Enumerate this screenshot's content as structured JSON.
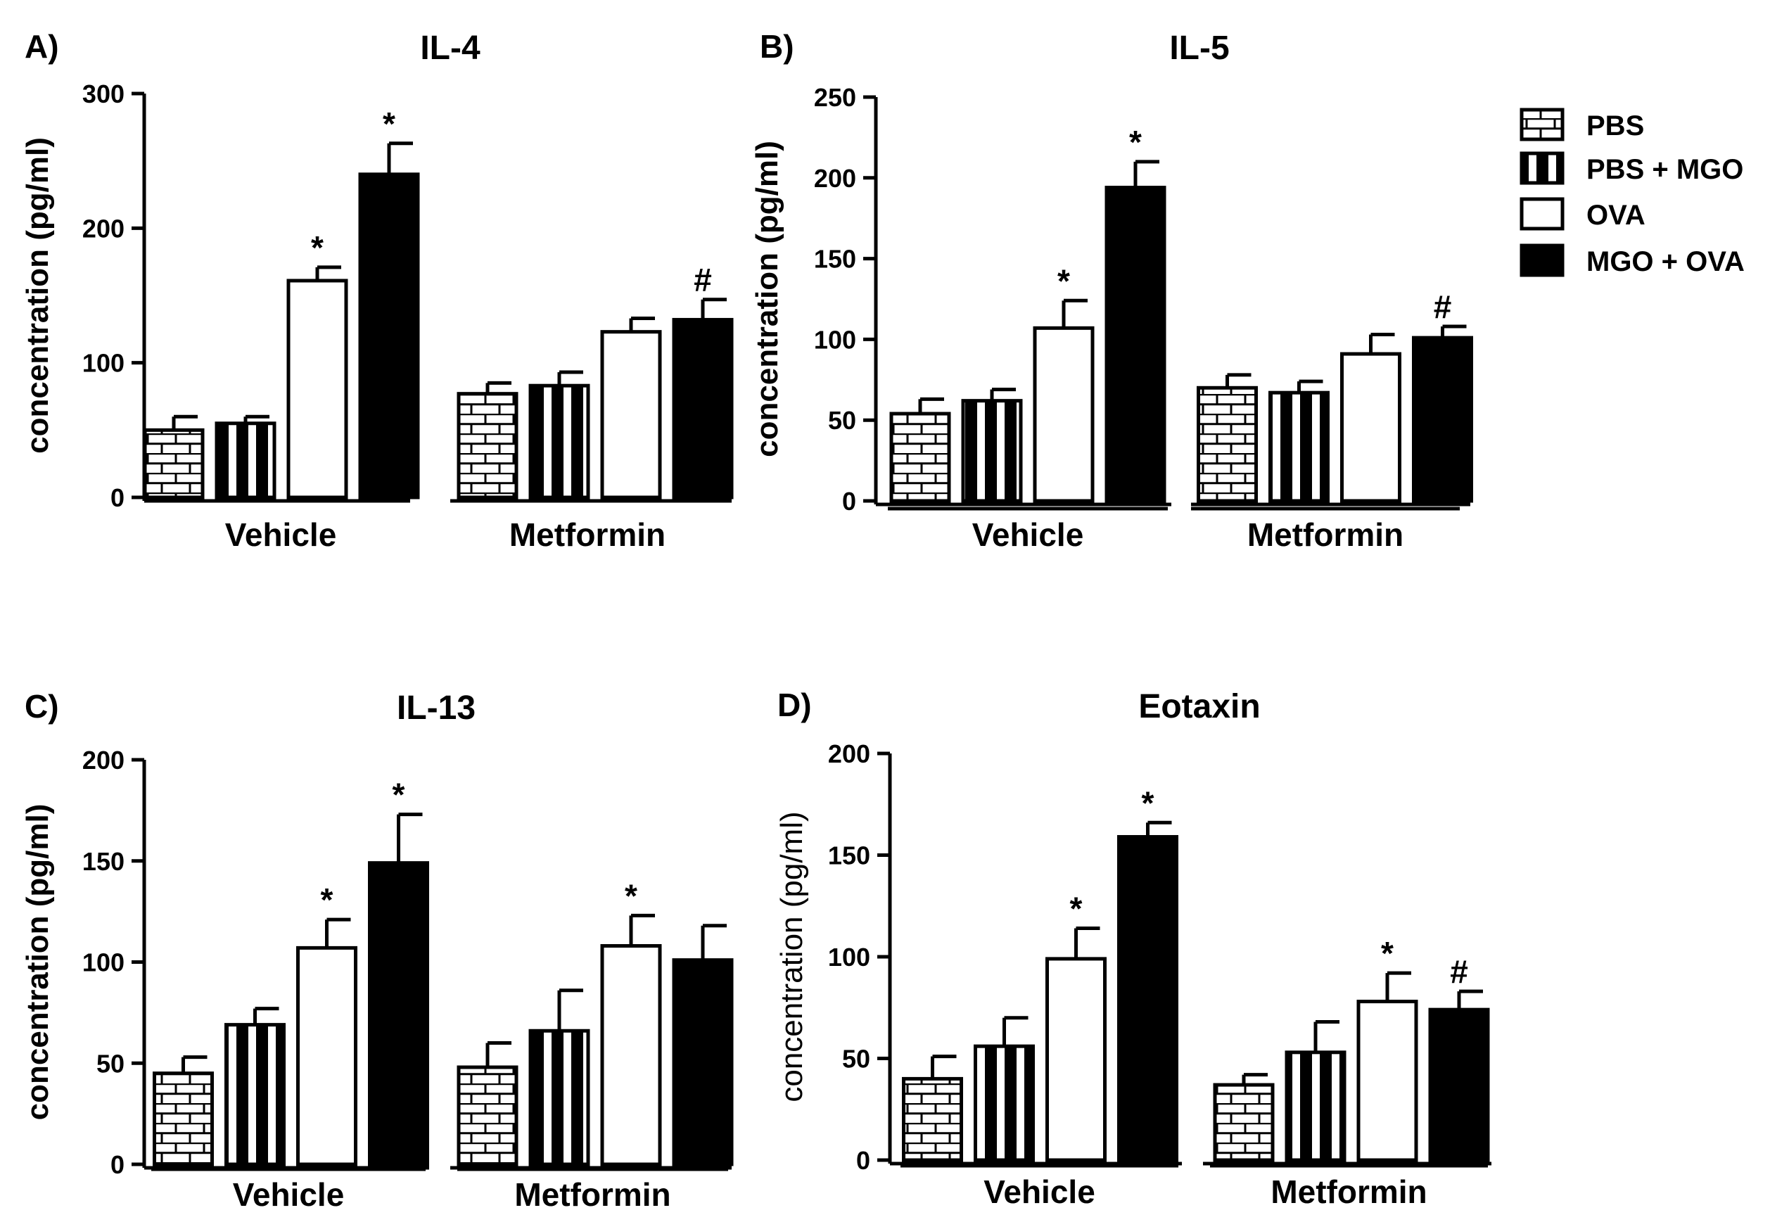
{
  "legend": {
    "entries": [
      {
        "key": "pbs",
        "label": "PBS"
      },
      {
        "key": "pbs_mgo",
        "label": "PBS + MGO"
      },
      {
        "key": "ova",
        "label": "OVA"
      },
      {
        "key": "mgo_ova",
        "label": "MGO + OVA"
      }
    ]
  },
  "chart_data": [
    {
      "type": "bar",
      "panel": "A)",
      "title": "IL-4",
      "ylabel": "concentration (pg/ml)",
      "ylim": [
        0,
        300
      ],
      "yticks": [
        0,
        100,
        200,
        300
      ],
      "groups": [
        "Vehicle",
        "Metformin"
      ],
      "series": [
        {
          "name": "PBS",
          "values": [
            50,
            77
          ],
          "errors": [
            10,
            8
          ],
          "annotations": [
            "",
            ""
          ]
        },
        {
          "name": "PBS + MGO",
          "values": [
            55,
            83
          ],
          "errors": [
            5,
            10
          ],
          "annotations": [
            "",
            ""
          ]
        },
        {
          "name": "OVA",
          "values": [
            161,
            123
          ],
          "errors": [
            10,
            10
          ],
          "annotations": [
            "*",
            ""
          ]
        },
        {
          "name": "MGO + OVA",
          "values": [
            240,
            132
          ],
          "errors": [
            23,
            15
          ],
          "annotations": [
            "*",
            "#"
          ]
        }
      ]
    },
    {
      "type": "bar",
      "panel": "B)",
      "title": "IL-5",
      "ylabel": "concentration (pg/ml)",
      "ylim": [
        0,
        250
      ],
      "yticks": [
        0,
        50,
        100,
        150,
        200,
        250
      ],
      "groups": [
        "Vehicle",
        "Metformin"
      ],
      "series": [
        {
          "name": "PBS",
          "values": [
            54,
            70
          ],
          "errors": [
            9,
            8
          ],
          "annotations": [
            "",
            ""
          ]
        },
        {
          "name": "PBS + MGO",
          "values": [
            62,
            67
          ],
          "errors": [
            7,
            7
          ],
          "annotations": [
            "",
            ""
          ]
        },
        {
          "name": "OVA",
          "values": [
            107,
            91
          ],
          "errors": [
            17,
            12
          ],
          "annotations": [
            "*",
            ""
          ]
        },
        {
          "name": "MGO + OVA",
          "values": [
            194,
            101
          ],
          "errors": [
            16,
            7
          ],
          "annotations": [
            "*",
            "#"
          ]
        }
      ]
    },
    {
      "type": "bar",
      "panel": "C)",
      "title": "IL-13",
      "ylabel": "concentration (pg/ml)",
      "ylim": [
        0,
        200
      ],
      "yticks": [
        0,
        50,
        100,
        150,
        200
      ],
      "groups": [
        "Vehicle",
        "Metformin"
      ],
      "series": [
        {
          "name": "PBS",
          "values": [
            45,
            48
          ],
          "errors": [
            8,
            12
          ],
          "annotations": [
            "",
            ""
          ]
        },
        {
          "name": "PBS + MGO",
          "values": [
            69,
            66
          ],
          "errors": [
            8,
            20
          ],
          "annotations": [
            "",
            ""
          ]
        },
        {
          "name": "OVA",
          "values": [
            107,
            108
          ],
          "errors": [
            14,
            15
          ],
          "annotations": [
            "*",
            "*"
          ]
        },
        {
          "name": "MGO + OVA",
          "values": [
            149,
            101
          ],
          "errors": [
            24,
            17
          ],
          "annotations": [
            "*",
            ""
          ]
        }
      ]
    },
    {
      "type": "bar",
      "panel": "D)",
      "title": "Eotaxin",
      "ylabel": "concentration (pg/ml)",
      "ylim": [
        0,
        200
      ],
      "yticks": [
        0,
        50,
        100,
        150,
        200
      ],
      "groups": [
        "Vehicle",
        "Metformin"
      ],
      "series": [
        {
          "name": "PBS",
          "values": [
            40,
            37
          ],
          "errors": [
            11,
            5
          ],
          "annotations": [
            "",
            ""
          ]
        },
        {
          "name": "PBS + MGO",
          "values": [
            56,
            53
          ],
          "errors": [
            14,
            15
          ],
          "annotations": [
            "",
            ""
          ]
        },
        {
          "name": "OVA",
          "values": [
            99,
            78
          ],
          "errors": [
            15,
            14
          ],
          "annotations": [
            "*",
            "*"
          ]
        },
        {
          "name": "MGO + OVA",
          "values": [
            159,
            74
          ],
          "errors": [
            7,
            9
          ],
          "annotations": [
            "*",
            "#"
          ]
        }
      ]
    }
  ]
}
